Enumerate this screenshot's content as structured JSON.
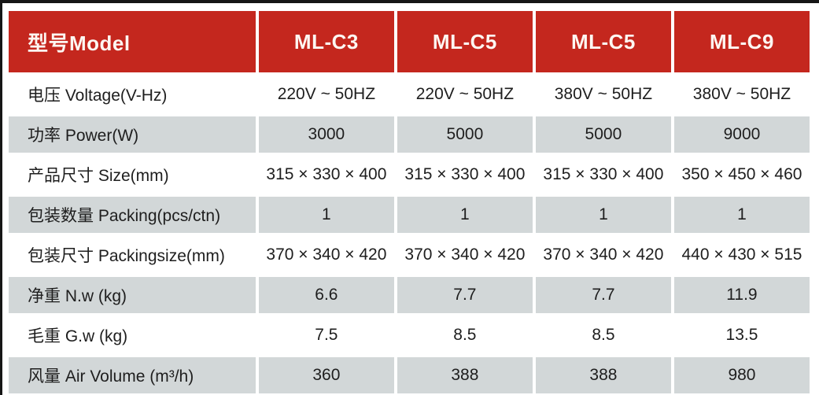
{
  "table": {
    "header": {
      "label": "型号Model",
      "models": [
        "ML-C3",
        "ML-C5",
        "ML-C5",
        "ML-C9"
      ]
    },
    "rows": [
      {
        "label": "电压 Voltage(V-Hz)",
        "values": [
          "220V ~ 50HZ",
          "220V ~ 50HZ",
          "380V ~ 50HZ",
          "380V ~ 50HZ"
        ]
      },
      {
        "label": "功率 Power(W)",
        "values": [
          "3000",
          "5000",
          "5000",
          "9000"
        ]
      },
      {
        "label": "产品尺寸 Size(mm)",
        "values": [
          "315 × 330 × 400",
          "315 × 330 × 400",
          "315 × 330 × 400",
          "350 × 450 × 460"
        ]
      },
      {
        "label": "包装数量 Packing(pcs/ctn)",
        "values": [
          "1",
          "1",
          "1",
          "1"
        ]
      },
      {
        "label": "包装尺寸 Packingsize(mm)",
        "values": [
          "370 × 340 × 420",
          "370 × 340 × 420",
          "370 × 340 × 420",
          "440 × 430 × 515"
        ]
      },
      {
        "label": "净重 N.w (kg)",
        "values": [
          "6.6",
          "7.7",
          "7.7",
          "11.9"
        ]
      },
      {
        "label": "毛重 G.w (kg)",
        "values": [
          "7.5",
          "8.5",
          "8.5",
          "13.5"
        ]
      },
      {
        "label": "风量 Air Volume (m³/h)",
        "values": [
          "360",
          "388",
          "388",
          "980"
        ]
      }
    ],
    "colors": {
      "header_bg": "#c4271e",
      "header_text": "#ffffff",
      "shaded_row_bg": "#d2d7d8",
      "body_text": "#1e1e1e",
      "edge_border": "#161616"
    }
  }
}
